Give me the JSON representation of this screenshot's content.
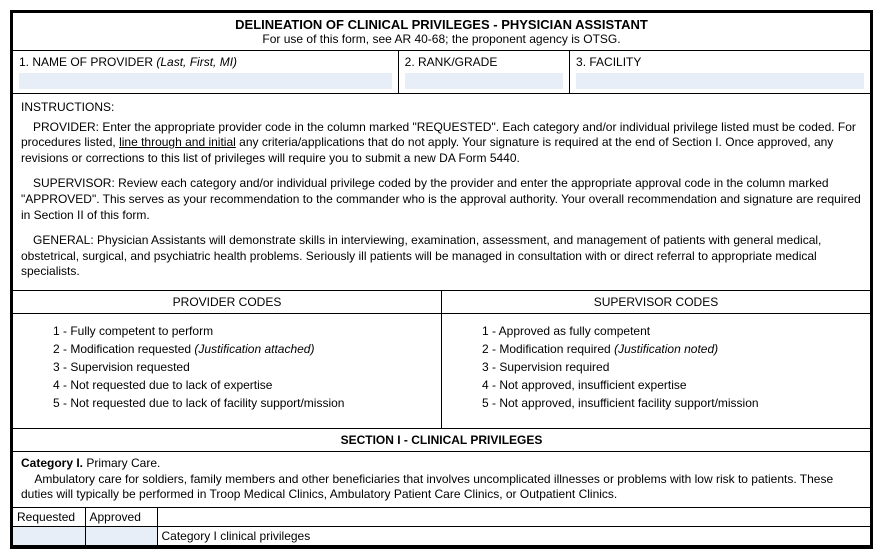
{
  "header": {
    "title": "DELINEATION OF CLINICAL PRIVILEGES - PHYSICIAN ASSISTANT",
    "subtitle": "For use of this form, see AR 40-68; the proponent agency is OTSG."
  },
  "fields": {
    "name_label": "1. NAME OF PROVIDER ",
    "name_hint": "(Last, First, MI)",
    "rank_label": "2. RANK/GRADE",
    "facility_label": "3. FACILITY"
  },
  "instructions": {
    "heading": "INSTRUCTIONS:",
    "provider_pre": "PROVIDER:  Enter the appropriate provider code in the column marked \"REQUESTED\". Each category and/or individual privilege listed must be coded. For procedures listed, ",
    "provider_underlined": "line through and initial",
    "provider_post": " any criteria/applications that do not apply. Your signature is required at the end of Section I. Once approved, any revisions or corrections to this list of privileges will require you to submit a new DA Form 5440.",
    "supervisor": "SUPERVISOR:  Review each category and/or individual privilege coded by the provider and enter the appropriate approval code in the column marked \"APPROVED\". This serves as your recommendation to the commander who is the approval authority. Your overall recommendation and signature are required in Section II of this form.",
    "general": "GENERAL:  Physician Assistants will demonstrate skills in interviewing, examination, assessment, and management of patients with general medical, obstetrical, surgical, and psychiatric health problems. Seriously ill patients will be managed in consultation with or direct referral to appropriate medical specialists."
  },
  "codes": {
    "provider_head": "PROVIDER CODES",
    "supervisor_head": "SUPERVISOR CODES",
    "provider": {
      "c1": "1 - Fully competent to perform",
      "c2a": "2 - Modification requested ",
      "c2b": "(Justification attached)",
      "c3": "3 - Supervision requested",
      "c4": "4 - Not requested due to lack of expertise",
      "c5": "5 - Not requested due to lack of facility support/mission"
    },
    "supervisor": {
      "c1": "1 - Approved as fully competent",
      "c2a": "2 - Modification required ",
      "c2b": "(Justification noted)",
      "c3": "3 - Supervision required",
      "c4": "4 - Not approved, insufficient expertise",
      "c5": "5 - Not approved, insufficient facility support/mission"
    }
  },
  "section1": {
    "heading": "SECTION I - CLINICAL PRIVILEGES",
    "cat1_title": "Category I.",
    "cat1_name": "  Primary Care.",
    "cat1_desc": "    Ambulatory care for soldiers, family members and other beneficiaries that involves uncomplicated illnesses or problems with low risk to patients. These duties will typically be performed in Troop Medical Clinics, Ambulatory Patient Care Clinics, or Outpatient Clinics.",
    "col_requested": "Requested",
    "col_approved": "Approved",
    "row1_label": "Category I clinical privileges"
  }
}
